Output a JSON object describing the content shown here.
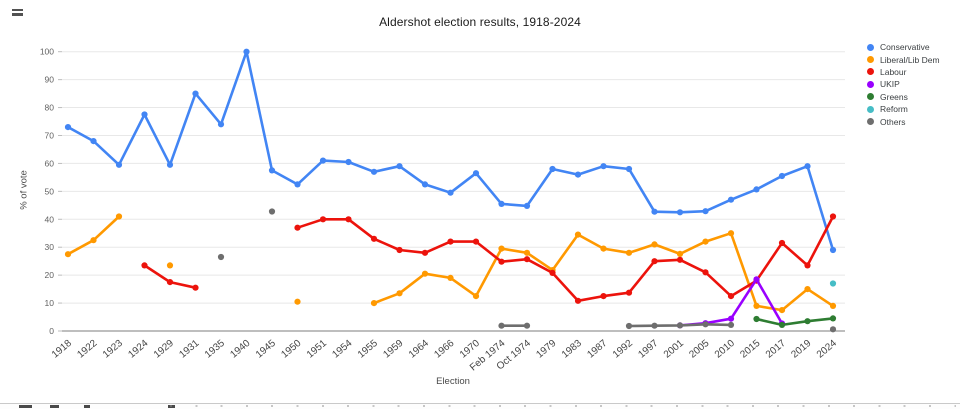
{
  "chart_data": {
    "type": "line",
    "title": "Aldershot election results, 1918-2024",
    "xlabel": "Election",
    "ylabel": "% of vote",
    "ylim": [
      0,
      100
    ],
    "ytick_step": 10,
    "grid": true,
    "legend_position": "right",
    "categories": [
      "1918",
      "1922",
      "1923",
      "1924",
      "1929",
      "1931",
      "1935",
      "1940",
      "1945",
      "1950",
      "1951",
      "1954",
      "1955",
      "1959",
      "1964",
      "1966",
      "1970",
      "Feb 1974",
      "Oct 1974",
      "1979",
      "1983",
      "1987",
      "1992",
      "1997",
      "2001",
      "2005",
      "2010",
      "2015",
      "2017",
      "2019",
      "2024"
    ],
    "series": [
      {
        "name": "Conservative",
        "color": "#4285F4",
        "values": [
          73,
          68,
          59.5,
          77.5,
          59.5,
          85,
          74,
          100,
          57.5,
          52.5,
          61,
          60.5,
          57,
          59,
          52.5,
          49.5,
          56.5,
          45.5,
          44.8,
          58,
          56,
          59,
          58,
          42.7,
          42.5,
          42.9,
          47,
          50.7,
          55.5,
          59,
          29
        ]
      },
      {
        "name": "Liberal/Lib Dem",
        "color": "#FF9900",
        "values": [
          27.5,
          32.5,
          41,
          null,
          23.5,
          null,
          null,
          null,
          null,
          10.5,
          null,
          null,
          10,
          13.5,
          20.5,
          19,
          12.5,
          29.5,
          28,
          21.8,
          34.5,
          29.5,
          28,
          31,
          27.6,
          32,
          35,
          9,
          7.5,
          15,
          9
        ]
      },
      {
        "name": "Labour",
        "color": "#EC130C",
        "values": [
          null,
          null,
          null,
          23.5,
          17.5,
          15.5,
          null,
          null,
          null,
          37,
          40,
          40,
          33,
          29,
          28,
          32,
          32,
          24.8,
          25.7,
          20.8,
          10.8,
          12.5,
          13.7,
          25,
          25.5,
          21,
          12.5,
          18,
          31.5,
          23.5,
          41
        ]
      },
      {
        "name": "UKIP",
        "color": "#9900FF",
        "values": [
          null,
          null,
          null,
          null,
          null,
          null,
          null,
          null,
          null,
          null,
          null,
          null,
          null,
          null,
          null,
          null,
          null,
          null,
          null,
          null,
          null,
          null,
          null,
          null,
          2,
          2.8,
          4.4,
          18.5,
          2.7,
          null,
          null
        ]
      },
      {
        "name": "Greens",
        "color": "#2E7D32",
        "values": [
          null,
          null,
          null,
          null,
          null,
          null,
          null,
          null,
          null,
          null,
          null,
          null,
          null,
          null,
          null,
          null,
          null,
          null,
          null,
          null,
          null,
          null,
          null,
          null,
          null,
          null,
          null,
          4.3,
          2.2,
          3.5,
          4.5
        ]
      },
      {
        "name": "Reform",
        "color": "#46BDC6",
        "values": [
          null,
          null,
          null,
          null,
          null,
          null,
          null,
          null,
          null,
          null,
          null,
          null,
          null,
          null,
          null,
          null,
          null,
          null,
          null,
          null,
          null,
          null,
          null,
          null,
          null,
          null,
          null,
          null,
          null,
          null,
          17
        ]
      },
      {
        "name": "Others",
        "color": "#6E6E6E",
        "values": [
          null,
          null,
          null,
          null,
          null,
          null,
          26.5,
          null,
          42.8,
          null,
          null,
          null,
          null,
          null,
          null,
          null,
          null,
          1.9,
          1.9,
          null,
          null,
          null,
          1.8,
          1.9,
          2,
          2.4,
          2.2,
          null,
          null,
          null,
          0.6
        ]
      }
    ]
  }
}
